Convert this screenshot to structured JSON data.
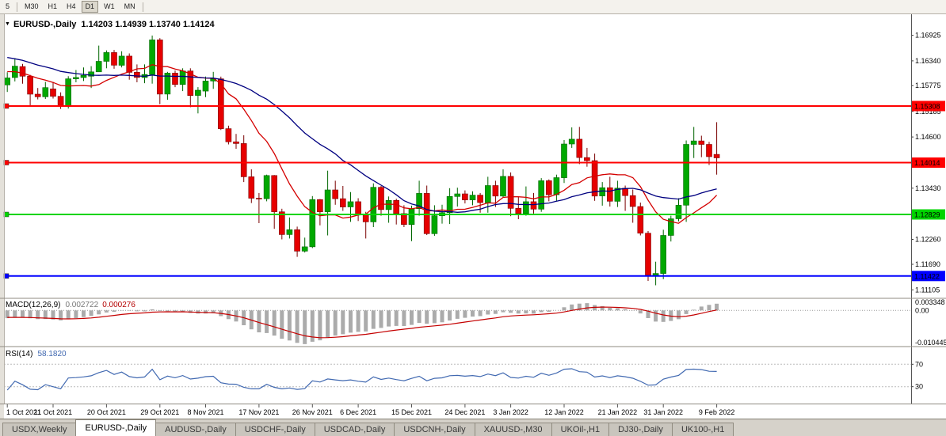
{
  "toolbar": {
    "buttons": [
      {
        "label": "5",
        "active": false
      },
      {
        "label": "M30",
        "active": false
      },
      {
        "label": "H1",
        "active": false
      },
      {
        "label": "H4",
        "active": false
      },
      {
        "label": "D1",
        "active": true
      },
      {
        "label": "W1",
        "active": false
      },
      {
        "label": "MN",
        "active": false
      }
    ]
  },
  "chart": {
    "title": {
      "collapse_icon": "▼",
      "symbol": "EURUSD-,Daily",
      "ohlc": "1.14203 1.14939 1.13740 1.14124"
    }
  },
  "macd_panel": {
    "name": "MACD(12,26,9)",
    "main_value": "0.002722",
    "signal_value": "0.000276",
    "axis_max": "0.003348",
    "axis_zero": "0.00",
    "axis_min": "-0.010445"
  },
  "rsi_panel": {
    "name": "RSI(14)",
    "value": "58.1820",
    "axis": [
      "70",
      "30"
    ]
  },
  "tabs": {
    "items": [
      {
        "label": "USDX,Weekly",
        "active": false
      },
      {
        "label": "EURUSD-,Daily",
        "active": true
      },
      {
        "label": "AUDUSD-,Daily",
        "active": false
      },
      {
        "label": "USDCHF-,Daily",
        "active": false
      },
      {
        "label": "USDCAD-,Daily",
        "active": false
      },
      {
        "label": "USDCNH-,Daily",
        "active": false
      },
      {
        "label": "XAUUSD-,M30",
        "active": false
      },
      {
        "label": "UKOil-,H1",
        "active": false
      },
      {
        "label": "DJ30-,Daily",
        "active": false
      },
      {
        "label": "UK100-,H1",
        "active": false
      }
    ]
  },
  "chart_data": {
    "type": "candlestick",
    "symbol": "EURUSD",
    "timeframe": "Daily",
    "title": "EURUSD-,Daily",
    "price_axis": {
      "min": 1.1093,
      "max": 1.1737,
      "tick_labels": [
        "1.16925",
        "1.16340",
        "1.15775",
        "1.15185",
        "1.14600",
        "1.13430",
        "1.12260",
        "1.11690",
        "1.11105"
      ]
    },
    "x": [
      "2021-10-01",
      "2021-10-04",
      "2021-10-05",
      "2021-10-06",
      "2021-10-07",
      "2021-10-08",
      "2021-10-11",
      "2021-10-12",
      "2021-10-13",
      "2021-10-14",
      "2021-10-15",
      "2021-10-18",
      "2021-10-19",
      "2021-10-20",
      "2021-10-21",
      "2021-10-22",
      "2021-10-25",
      "2021-10-26",
      "2021-10-27",
      "2021-10-28",
      "2021-10-29",
      "2021-11-01",
      "2021-11-02",
      "2021-11-03",
      "2021-11-04",
      "2021-11-05",
      "2021-11-08",
      "2021-11-09",
      "2021-11-10",
      "2021-11-11",
      "2021-11-12",
      "2021-11-15",
      "2021-11-16",
      "2021-11-17",
      "2021-11-18",
      "2021-11-19",
      "2021-11-22",
      "2021-11-23",
      "2021-11-24",
      "2021-11-25",
      "2021-11-26",
      "2021-11-29",
      "2021-11-30",
      "2021-12-01",
      "2021-12-02",
      "2021-12-03",
      "2021-12-06",
      "2021-12-07",
      "2021-12-08",
      "2021-12-09",
      "2021-12-10",
      "2021-12-13",
      "2021-12-14",
      "2021-12-15",
      "2021-12-16",
      "2021-12-17",
      "2021-12-20",
      "2021-12-21",
      "2021-12-22",
      "2021-12-23",
      "2021-12-24",
      "2021-12-27",
      "2021-12-28",
      "2021-12-29",
      "2021-12-30",
      "2021-12-31",
      "2022-01-03",
      "2022-01-04",
      "2022-01-05",
      "2022-01-06",
      "2022-01-07",
      "2022-01-10",
      "2022-01-11",
      "2022-01-12",
      "2022-01-13",
      "2022-01-14",
      "2022-01-17",
      "2022-01-18",
      "2022-01-19",
      "2022-01-20",
      "2022-01-21",
      "2022-01-24",
      "2022-01-25",
      "2022-01-26",
      "2022-01-27",
      "2022-01-28",
      "2022-01-31",
      "2022-02-01",
      "2022-02-02",
      "2022-02-03",
      "2022-02-04",
      "2022-02-07",
      "2022-02-08",
      "2022-02-09"
    ],
    "open": [
      1.1579,
      1.1596,
      1.1621,
      1.1599,
      1.1558,
      1.1552,
      1.157,
      1.1553,
      1.153,
      1.1593,
      1.1596,
      1.1599,
      1.1609,
      1.1633,
      1.1653,
      1.1624,
      1.1645,
      1.1608,
      1.1596,
      1.1603,
      1.1682,
      1.1558,
      1.1606,
      1.158,
      1.1611,
      1.1555,
      1.1565,
      1.1588,
      1.1593,
      1.1479,
      1.1449,
      1.1445,
      1.1369,
      1.132,
      1.1319,
      1.1372,
      1.1289,
      1.1237,
      1.1248,
      1.1199,
      1.1209,
      1.1317,
      1.1289,
      1.1339,
      1.1319,
      1.13,
      1.1312,
      1.1284,
      1.1266,
      1.1345,
      1.1294,
      1.1315,
      1.1285,
      1.126,
      1.1296,
      1.1331,
      1.1239,
      1.128,
      1.1287,
      1.1324,
      1.133,
      1.1316,
      1.1327,
      1.131,
      1.1349,
      1.1325,
      1.137,
      1.1297,
      1.1285,
      1.1312,
      1.1295,
      1.136,
      1.1328,
      1.1367,
      1.1444,
      1.1455,
      1.1413,
      1.1406,
      1.1325,
      1.1344,
      1.1313,
      1.1343,
      1.1326,
      1.1301,
      1.124,
      1.1144,
      1.1148,
      1.1235,
      1.1273,
      1.1304,
      1.1443,
      1.1451,
      1.1443,
      1.14203
    ],
    "high": [
      1.1608,
      1.164,
      1.1627,
      1.1602,
      1.1572,
      1.1586,
      1.1586,
      1.1562,
      1.1599,
      1.1613,
      1.1619,
      1.1622,
      1.1669,
      1.1658,
      1.1659,
      1.1656,
      1.1651,
      1.1626,
      1.1626,
      1.1692,
      1.1686,
      1.1609,
      1.1612,
      1.1617,
      1.1617,
      1.1574,
      1.1598,
      1.1609,
      1.1598,
      1.1486,
      1.1467,
      1.1464,
      1.1386,
      1.1332,
      1.1374,
      1.1373,
      1.1296,
      1.1276,
      1.1255,
      1.123,
      1.1325,
      1.1318,
      1.1383,
      1.136,
      1.1348,
      1.1334,
      1.132,
      1.1289,
      1.1354,
      1.1348,
      1.1324,
      1.1319,
      1.1304,
      1.1303,
      1.136,
      1.1349,
      1.1304,
      1.1305,
      1.1343,
      1.1344,
      1.1338,
      1.1336,
      1.1332,
      1.1369,
      1.136,
      1.1386,
      1.1379,
      1.1323,
      1.1347,
      1.1332,
      1.1366,
      1.1363,
      1.1374,
      1.1453,
      1.1482,
      1.1483,
      1.1435,
      1.1422,
      1.1357,
      1.1369,
      1.136,
      1.1349,
      1.134,
      1.131,
      1.1245,
      1.1175,
      1.1248,
      1.128,
      1.132,
      1.1452,
      1.1483,
      1.1463,
      1.1449,
      1.14939
    ],
    "low": [
      1.1563,
      1.1587,
      1.1582,
      1.1529,
      1.1546,
      1.1547,
      1.1548,
      1.1524,
      1.1525,
      1.1585,
      1.1588,
      1.1572,
      1.1609,
      1.1617,
      1.1616,
      1.1619,
      1.1591,
      1.1585,
      1.1583,
      1.1582,
      1.1535,
      1.1545,
      1.1574,
      1.1565,
      1.1528,
      1.1514,
      1.1551,
      1.157,
      1.1476,
      1.1443,
      1.1433,
      1.1357,
      1.1309,
      1.1263,
      1.1313,
      1.125,
      1.1226,
      1.1228,
      1.1186,
      1.1196,
      1.1206,
      1.1258,
      1.1235,
      1.1305,
      1.1291,
      1.1266,
      1.1268,
      1.1228,
      1.1254,
      1.128,
      1.1264,
      1.126,
      1.1254,
      1.1222,
      1.128,
      1.1236,
      1.1234,
      1.1262,
      1.1261,
      1.1301,
      1.1308,
      1.1304,
      1.1287,
      1.1287,
      1.13,
      1.1321,
      1.1279,
      1.1272,
      1.128,
      1.1285,
      1.1289,
      1.1313,
      1.1314,
      1.1355,
      1.1435,
      1.1398,
      1.1392,
      1.1314,
      1.1303,
      1.1301,
      1.13,
      1.1291,
      1.1264,
      1.1235,
      1.1131,
      1.1121,
      1.1135,
      1.1221,
      1.1267,
      1.1266,
      1.1412,
      1.1414,
      1.1396,
      1.1374
    ],
    "close": [
      1.1595,
      1.1622,
      1.1599,
      1.1558,
      1.1552,
      1.1573,
      1.1553,
      1.153,
      1.1593,
      1.1596,
      1.1601,
      1.1609,
      1.1633,
      1.1653,
      1.1624,
      1.1645,
      1.1608,
      1.1596,
      1.1603,
      1.1682,
      1.1558,
      1.1606,
      1.158,
      1.1611,
      1.1555,
      1.1567,
      1.1588,
      1.1593,
      1.1479,
      1.1449,
      1.1445,
      1.1369,
      1.132,
      1.1319,
      1.1372,
      1.1289,
      1.1237,
      1.1248,
      1.1199,
      1.1209,
      1.1317,
      1.1289,
      1.1339,
      1.1319,
      1.13,
      1.1312,
      1.1284,
      1.1266,
      1.1345,
      1.1294,
      1.1315,
      1.1285,
      1.126,
      1.1296,
      1.1331,
      1.1239,
      1.128,
      1.1287,
      1.1324,
      1.133,
      1.1316,
      1.1327,
      1.131,
      1.1349,
      1.1325,
      1.137,
      1.1297,
      1.1285,
      1.1312,
      1.1295,
      1.136,
      1.1328,
      1.1367,
      1.1444,
      1.1455,
      1.1413,
      1.1406,
      1.1325,
      1.1344,
      1.1313,
      1.1343,
      1.1326,
      1.1301,
      1.124,
      1.1144,
      1.1148,
      1.1235,
      1.1273,
      1.1304,
      1.1443,
      1.1451,
      1.1443,
      1.1415,
      1.14124
    ],
    "colors": {
      "up": "#00A800",
      "up_border": "#006600",
      "down": "#E60000",
      "down_border": "#7A0000"
    },
    "moving_averages": [
      {
        "type": "sma",
        "period": 10,
        "color": "#D40000"
      },
      {
        "type": "sma",
        "period": 25,
        "color": "#000080"
      }
    ],
    "ma_warmup_closes": [
      1.1702,
      1.1696,
      1.1688,
      1.1694,
      1.1684,
      1.1677,
      1.1668,
      1.1674,
      1.166,
      1.1655,
      1.1648,
      1.1654,
      1.1644,
      1.1636,
      1.1642,
      1.163,
      1.1624,
      1.163,
      1.1618,
      1.1611,
      1.1617,
      1.1606,
      1.1598,
      1.1604,
      1.1592
    ],
    "levels": [
      {
        "price": 1.15308,
        "label": "1.15308",
        "color": "#FF0000"
      },
      {
        "price": 1.14014,
        "label": "1.14014",
        "color": "#FF0000"
      },
      {
        "price": 1.12829,
        "label": "1.12829",
        "color": "#00D400"
      },
      {
        "price": 1.11422,
        "label": "1.11422",
        "color": "#0000FF"
      }
    ],
    "date_axis": [
      {
        "label": "1 Oct 2021",
        "index": 0
      },
      {
        "label": "11 Oct 2021",
        "index": 6
      },
      {
        "label": "20 Oct 2021",
        "index": 13
      },
      {
        "label": "29 Oct 2021",
        "index": 20
      },
      {
        "label": "8 Nov 2021",
        "index": 26
      },
      {
        "label": "17 Nov 2021",
        "index": 33
      },
      {
        "label": "26 Nov 2021",
        "index": 40
      },
      {
        "label": "6 Dec 2021",
        "index": 46
      },
      {
        "label": "15 Dec 2021",
        "index": 53
      },
      {
        "label": "24 Dec 2021",
        "index": 60
      },
      {
        "label": "3 Jan 2022",
        "index": 66
      },
      {
        "label": "12 Jan 2022",
        "index": 73
      },
      {
        "label": "21 Jan 2022",
        "index": 80
      },
      {
        "label": "31 Jan 2022",
        "index": 86
      },
      {
        "label": "9 Feb 2022",
        "index": 93
      }
    ],
    "macd": {
      "fast": 12,
      "slow": 26,
      "signal": 9,
      "range": [
        -0.010445,
        0.003348
      ],
      "histogram_color": "#ABABAB",
      "signal_color": "#C40000"
    },
    "rsi": {
      "period": 14,
      "levels": [
        70,
        30
      ],
      "range": [
        0,
        100
      ],
      "line_color": "#4169B1"
    }
  }
}
